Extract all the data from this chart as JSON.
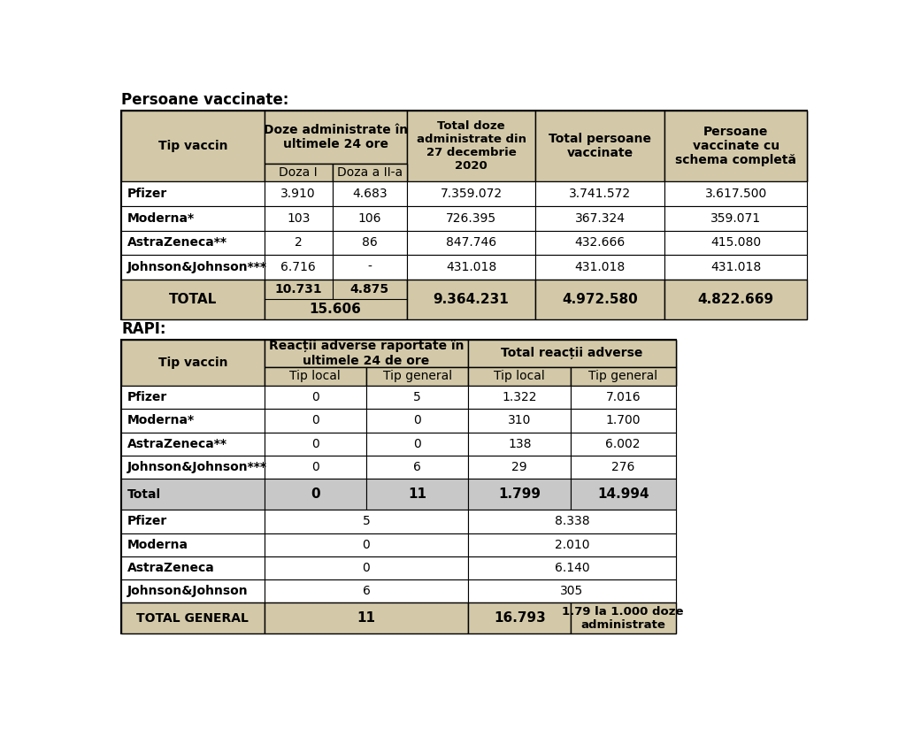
{
  "bg_color": "#ffffff",
  "header_bg": "#d3c9a8",
  "total_row_bg2": "#c8c8c8",
  "title1": "Persoane vaccinate:",
  "title2": "RAPI:",
  "table1": {
    "rows": [
      [
        "Pfizer",
        "3.910",
        "4.683",
        "7.359.072",
        "3.741.572",
        "3.617.500"
      ],
      [
        "Moderna*",
        "103",
        "106",
        "726.395",
        "367.324",
        "359.071"
      ],
      [
        "AstraZeneca**",
        "2",
        "86",
        "847.746",
        "432.666",
        "415.080"
      ],
      [
        "Johnson&Johnson***",
        "6.716",
        "-",
        "431.018",
        "431.018",
        "431.018"
      ]
    ],
    "total": [
      "TOTAL",
      "10.731",
      "4.875",
      "15.606",
      "9.364.231",
      "4.972.580",
      "4.822.669"
    ]
  },
  "table2": {
    "rows": [
      [
        "Pfizer",
        "0",
        "5",
        "1.322",
        "7.016"
      ],
      [
        "Moderna*",
        "0",
        "0",
        "310",
        "1.700"
      ],
      [
        "AstraZeneca**",
        "0",
        "0",
        "138",
        "6.002"
      ],
      [
        "Johnson&Johnson***",
        "0",
        "6",
        "29",
        "276"
      ]
    ],
    "total1": [
      "Total",
      "0",
      "11",
      "1.799",
      "14.994"
    ],
    "rows2": [
      [
        "Pfizer",
        "5",
        "8.338"
      ],
      [
        "Moderna",
        "0",
        "2.010"
      ],
      [
        "AstraZeneca",
        "0",
        "6.140"
      ],
      [
        "Johnson&Johnson",
        "6",
        "305"
      ]
    ],
    "total2": [
      "TOTAL GENERAL",
      "11",
      "16.793",
      "1.79 la 1.000 doze\nadministrate"
    ]
  }
}
